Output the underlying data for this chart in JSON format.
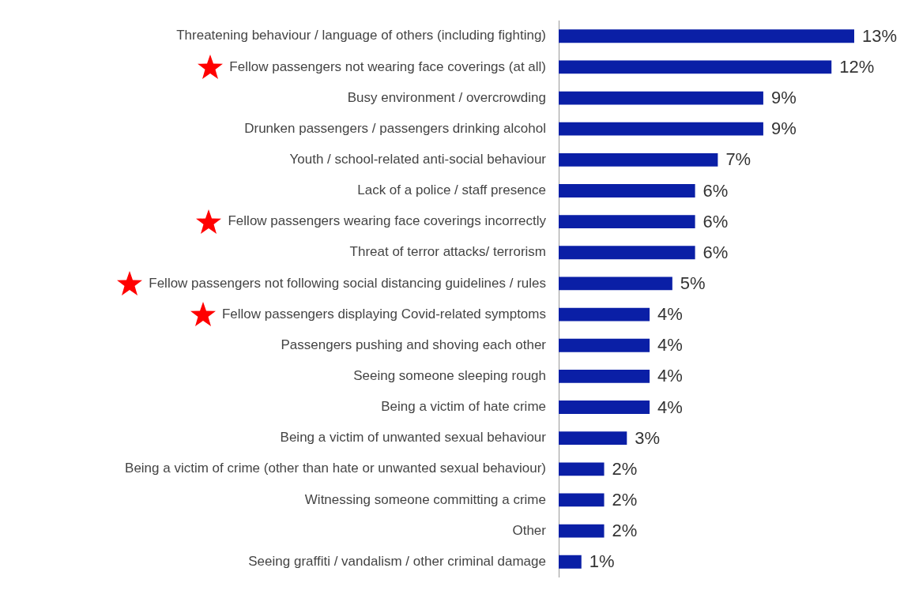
{
  "chart_data": {
    "type": "bar",
    "orientation": "horizontal",
    "categories": [
      "Threatening behaviour / language of others (including fighting)",
      "Fellow passengers not wearing face coverings (at all)",
      "Busy environment / overcrowding",
      "Drunken passengers / passengers drinking alcohol",
      "Youth / school-related anti-social behaviour",
      "Lack of a police / staff presence",
      "Fellow passengers wearing face coverings incorrectly",
      "Threat of terror attacks/ terrorism",
      "Fellow passengers not following social distancing guidelines / rules",
      "Fellow passengers displaying Covid-related symptoms",
      "Passengers pushing and shoving each other",
      "Seeing someone sleeping rough",
      "Being a victim of hate crime",
      "Being a victim of unwanted sexual behaviour",
      "Being a victim of crime (other than hate or unwanted sexual behaviour)",
      "Witnessing someone committing a crime",
      "Other",
      "Seeing graffiti / vandalism / other criminal damage"
    ],
    "values": [
      13,
      12,
      9,
      9,
      7,
      6,
      6,
      6,
      5,
      4,
      4,
      4,
      4,
      3,
      2,
      2,
      2,
      1
    ],
    "value_labels": [
      "13%",
      "12%",
      "9%",
      "9%",
      "7%",
      "6%",
      "6%",
      "6%",
      "5%",
      "4%",
      "4%",
      "4%",
      "4%",
      "3%",
      "2%",
      "2%",
      "2%",
      "1%"
    ],
    "color": "#0a1fa6",
    "xlim": [
      0,
      13
    ],
    "tick_labels": "y"
  }
}
